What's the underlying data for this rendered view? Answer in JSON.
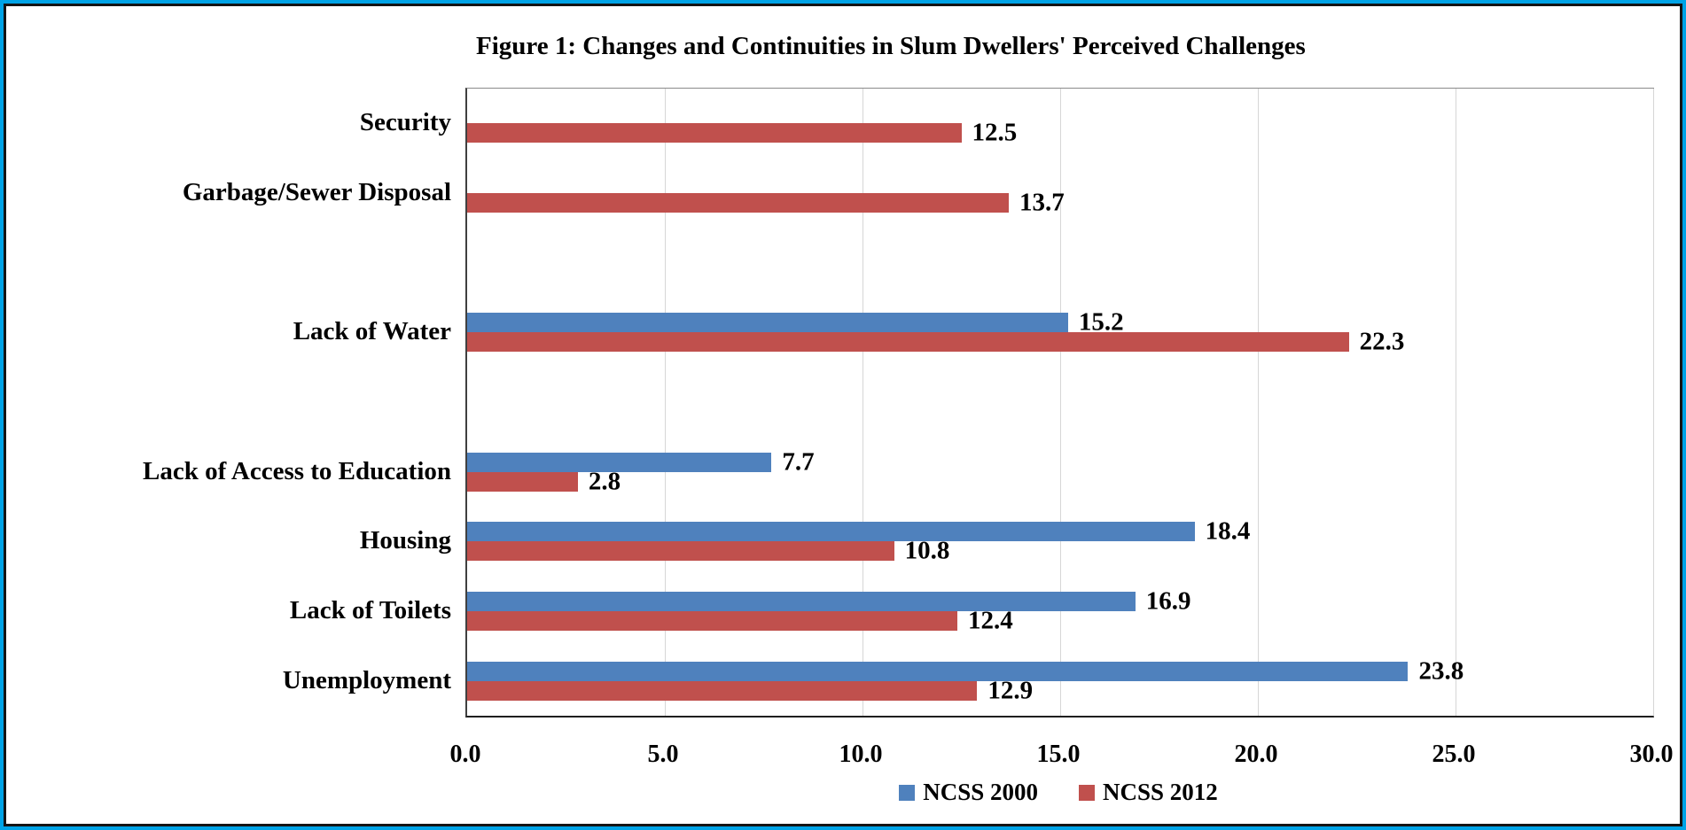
{
  "figure": {
    "frame_border_color": "#00A3E6",
    "inner_border_color": "#141414",
    "background_color": "#FFFFFF"
  },
  "chart_data": {
    "type": "bar",
    "orientation": "horizontal",
    "title": "Figure 1: Changes and Continuities in Slum Dwellers' Perceived Challenges",
    "categories": [
      "Security",
      "Garbage/Sewer Disposal",
      "",
      "Lack of Water",
      "",
      "Lack of Access to Education",
      "Housing",
      "Lack of Toilets",
      "Unemployment"
    ],
    "series": [
      {
        "name": "NCSS 2000",
        "color": "#4F81BD",
        "values": [
          null,
          null,
          null,
          15.2,
          null,
          7.7,
          18.4,
          16.9,
          23.8
        ]
      },
      {
        "name": "NCSS 2012",
        "color": "#C0504D",
        "values": [
          12.5,
          13.7,
          null,
          22.3,
          null,
          2.8,
          10.8,
          12.4,
          12.9
        ]
      }
    ],
    "x_axis": {
      "min": 0.0,
      "max": 30.0,
      "tick_interval": 5.0,
      "tick_labels": [
        "0.0",
        "5.0",
        "10.0",
        "15.0",
        "20.0",
        "25.0",
        "30.0"
      ]
    },
    "data_labels": true,
    "grid": "vertical-major",
    "gridline_color": "#D6D6D6",
    "legend": {
      "position": "bottom",
      "entries": [
        "NCSS 2000",
        "NCSS 2012"
      ]
    }
  }
}
